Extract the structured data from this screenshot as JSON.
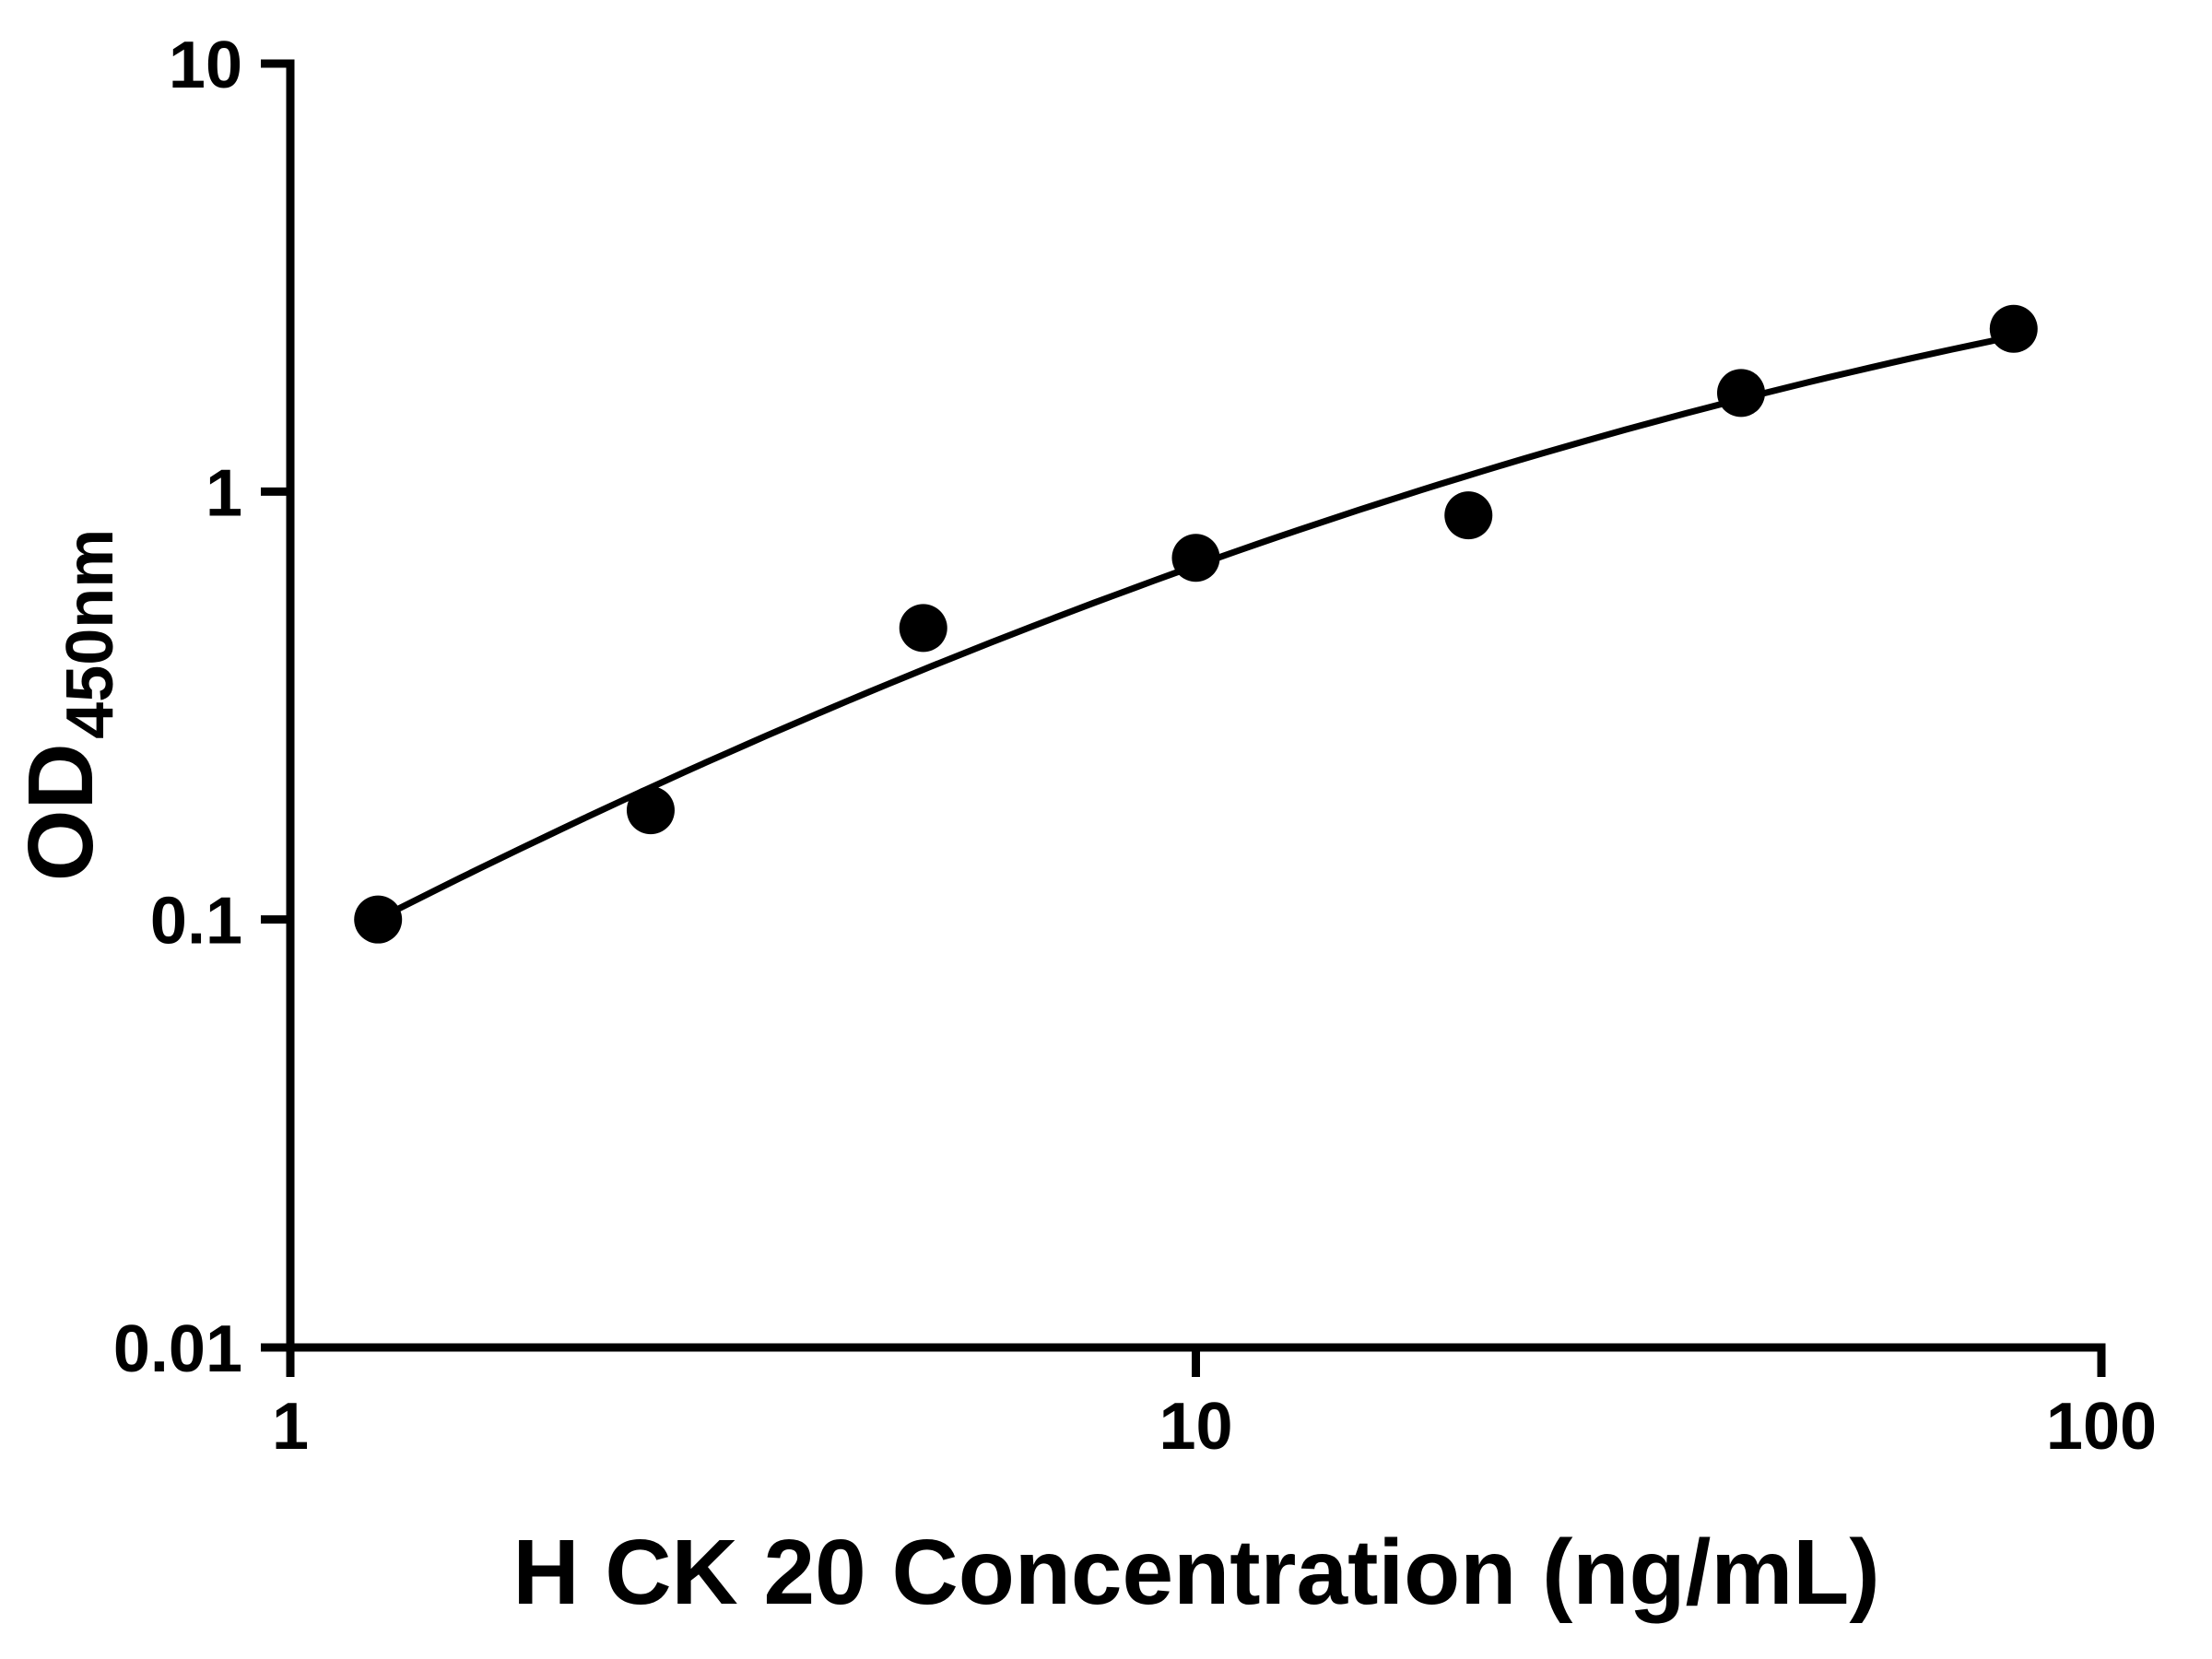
{
  "chart_data": {
    "type": "scatter",
    "title": "",
    "xlabel": "H CK 20 Concentration (ng/mL)",
    "ylabel": "OD450nm",
    "ylabel_main": "OD",
    "ylabel_sub": "450nm",
    "xscale": "log",
    "yscale": "log",
    "xlim": [
      1,
      100
    ],
    "ylim": [
      0.01,
      10
    ],
    "xticks": [
      1,
      10,
      100
    ],
    "xtick_labels": [
      "1",
      "10",
      "100"
    ],
    "yticks": [
      10,
      1,
      0.1,
      0.01
    ],
    "ytick_labels": [
      "10",
      "1",
      "0.1",
      "0.01"
    ],
    "x": [
      1.25,
      2.5,
      5,
      10,
      20,
      40,
      80
    ],
    "y": [
      0.1,
      0.18,
      0.48,
      0.7,
      0.88,
      1.7,
      2.4
    ],
    "fit": "smooth log-log fit curve through data points",
    "grid": false,
    "legend": false,
    "marker_color": "#000000",
    "line_color": "#000000",
    "axis_color": "#000000",
    "background": "#ffffff"
  }
}
